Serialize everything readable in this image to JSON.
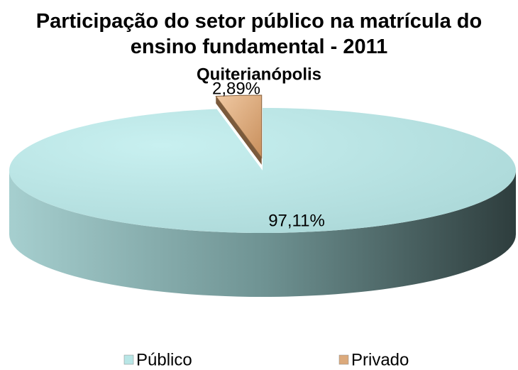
{
  "chart_data": {
    "type": "pie",
    "title": "Participação do setor público na matrícula do ensino fundamental - 2011",
    "subtitle": "Quiterianópolis",
    "categories": [
      "Público",
      "Privado"
    ],
    "values": [
      97.11,
      2.89
    ],
    "value_labels": [
      "97,11%",
      "2,89%"
    ],
    "colors": [
      "#b8e6e6",
      "#dcaa7c"
    ],
    "legend": "bottom"
  }
}
